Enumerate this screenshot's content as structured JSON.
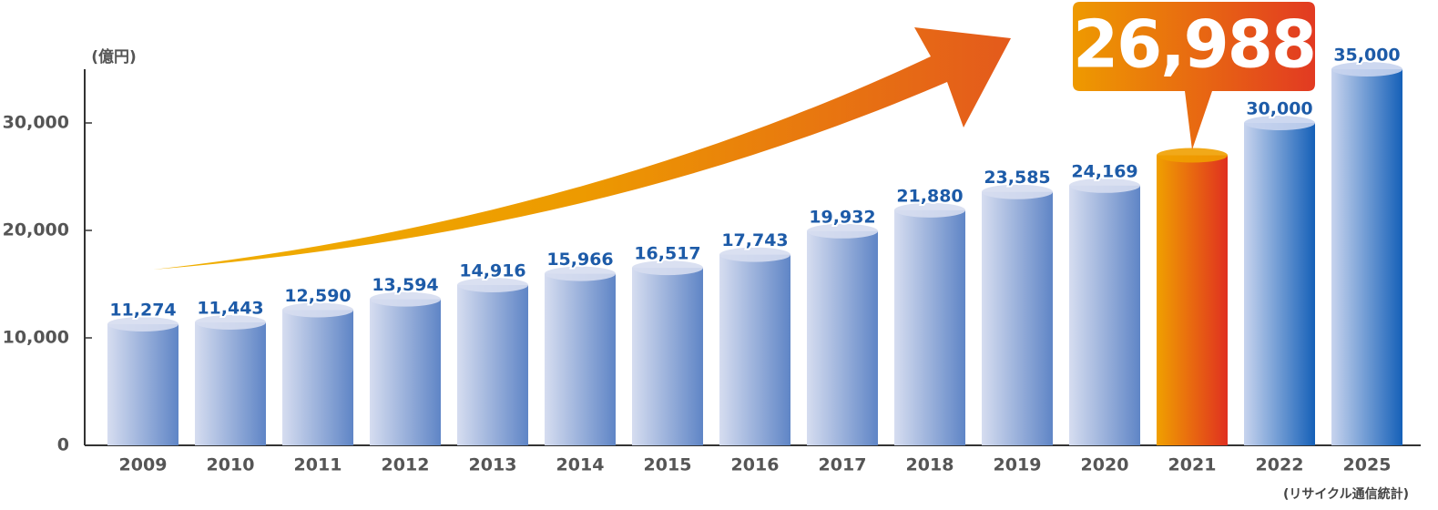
{
  "chart_data": {
    "type": "bar",
    "y_label": "(億円)",
    "source": "(リサイクル通信統計)",
    "categories": [
      "2009",
      "2010",
      "2011",
      "2012",
      "2013",
      "2014",
      "2015",
      "2016",
      "2017",
      "2018",
      "2019",
      "2020",
      "2021",
      "2022",
      "2025"
    ],
    "values": [
      11274,
      11443,
      12590,
      13594,
      14916,
      15966,
      16517,
      17743,
      19932,
      21880,
      23585,
      24169,
      26988,
      30000,
      35000
    ],
    "value_labels": [
      "11,274",
      "11,443",
      "12,590",
      "13,594",
      "14,916",
      "15,966",
      "16,517",
      "17,743",
      "19,932",
      "21,880",
      "23,585",
      "24,169",
      "26,988",
      "30,000",
      "35,000"
    ],
    "colors": [
      [
        "#d6ddf0",
        "#5f85c6"
      ],
      [
        "#d6ddf0",
        "#5f85c6"
      ],
      [
        "#d6ddf0",
        "#5f85c6"
      ],
      [
        "#d6ddf0",
        "#5f85c6"
      ],
      [
        "#d6ddf0",
        "#5f85c6"
      ],
      [
        "#d6ddf0",
        "#5f85c6"
      ],
      [
        "#d6ddf0",
        "#5f85c6"
      ],
      [
        "#d6ddf0",
        "#5f85c6"
      ],
      [
        "#d6ddf0",
        "#5f85c6"
      ],
      [
        "#d6ddf0",
        "#5f85c6"
      ],
      [
        "#d6ddf0",
        "#5f85c6"
      ],
      [
        "#d6ddf0",
        "#5f85c6"
      ],
      [
        "#f0a000",
        "#e03020"
      ],
      [
        "#c8d4ee",
        "#1560b8"
      ],
      [
        "#c8d4ee",
        "#1560b8"
      ]
    ],
    "highlight_color": [
      "#ee9a00",
      "#e23a22"
    ],
    "ylim": [
      0,
      35000
    ],
    "yticks": [
      0,
      {
        "value": 10000,
        "label": "10,000"
      },
      {
        "value": 20000,
        "label": "20,000"
      },
      {
        "value": 30000,
        "label": "30,000"
      }
    ]
  }
}
